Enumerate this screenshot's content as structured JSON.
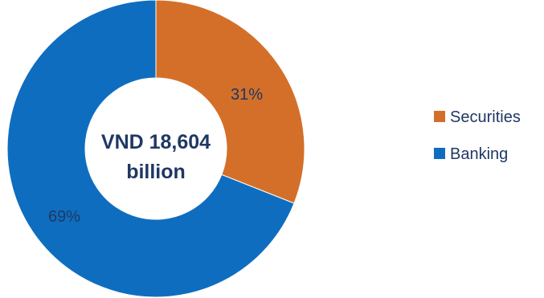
{
  "chart_data": {
    "type": "pie",
    "style": "donut",
    "center_label": [
      "VND 18,604",
      "billion"
    ],
    "categories": [
      "Securities",
      "Banking"
    ],
    "values": [
      31,
      69
    ],
    "value_labels": [
      "31%",
      "69%"
    ],
    "colors": [
      "#d46f2a",
      "#0f6dbf"
    ],
    "legend": {
      "position": "right",
      "entries": [
        "Securities",
        "Banking"
      ]
    }
  }
}
